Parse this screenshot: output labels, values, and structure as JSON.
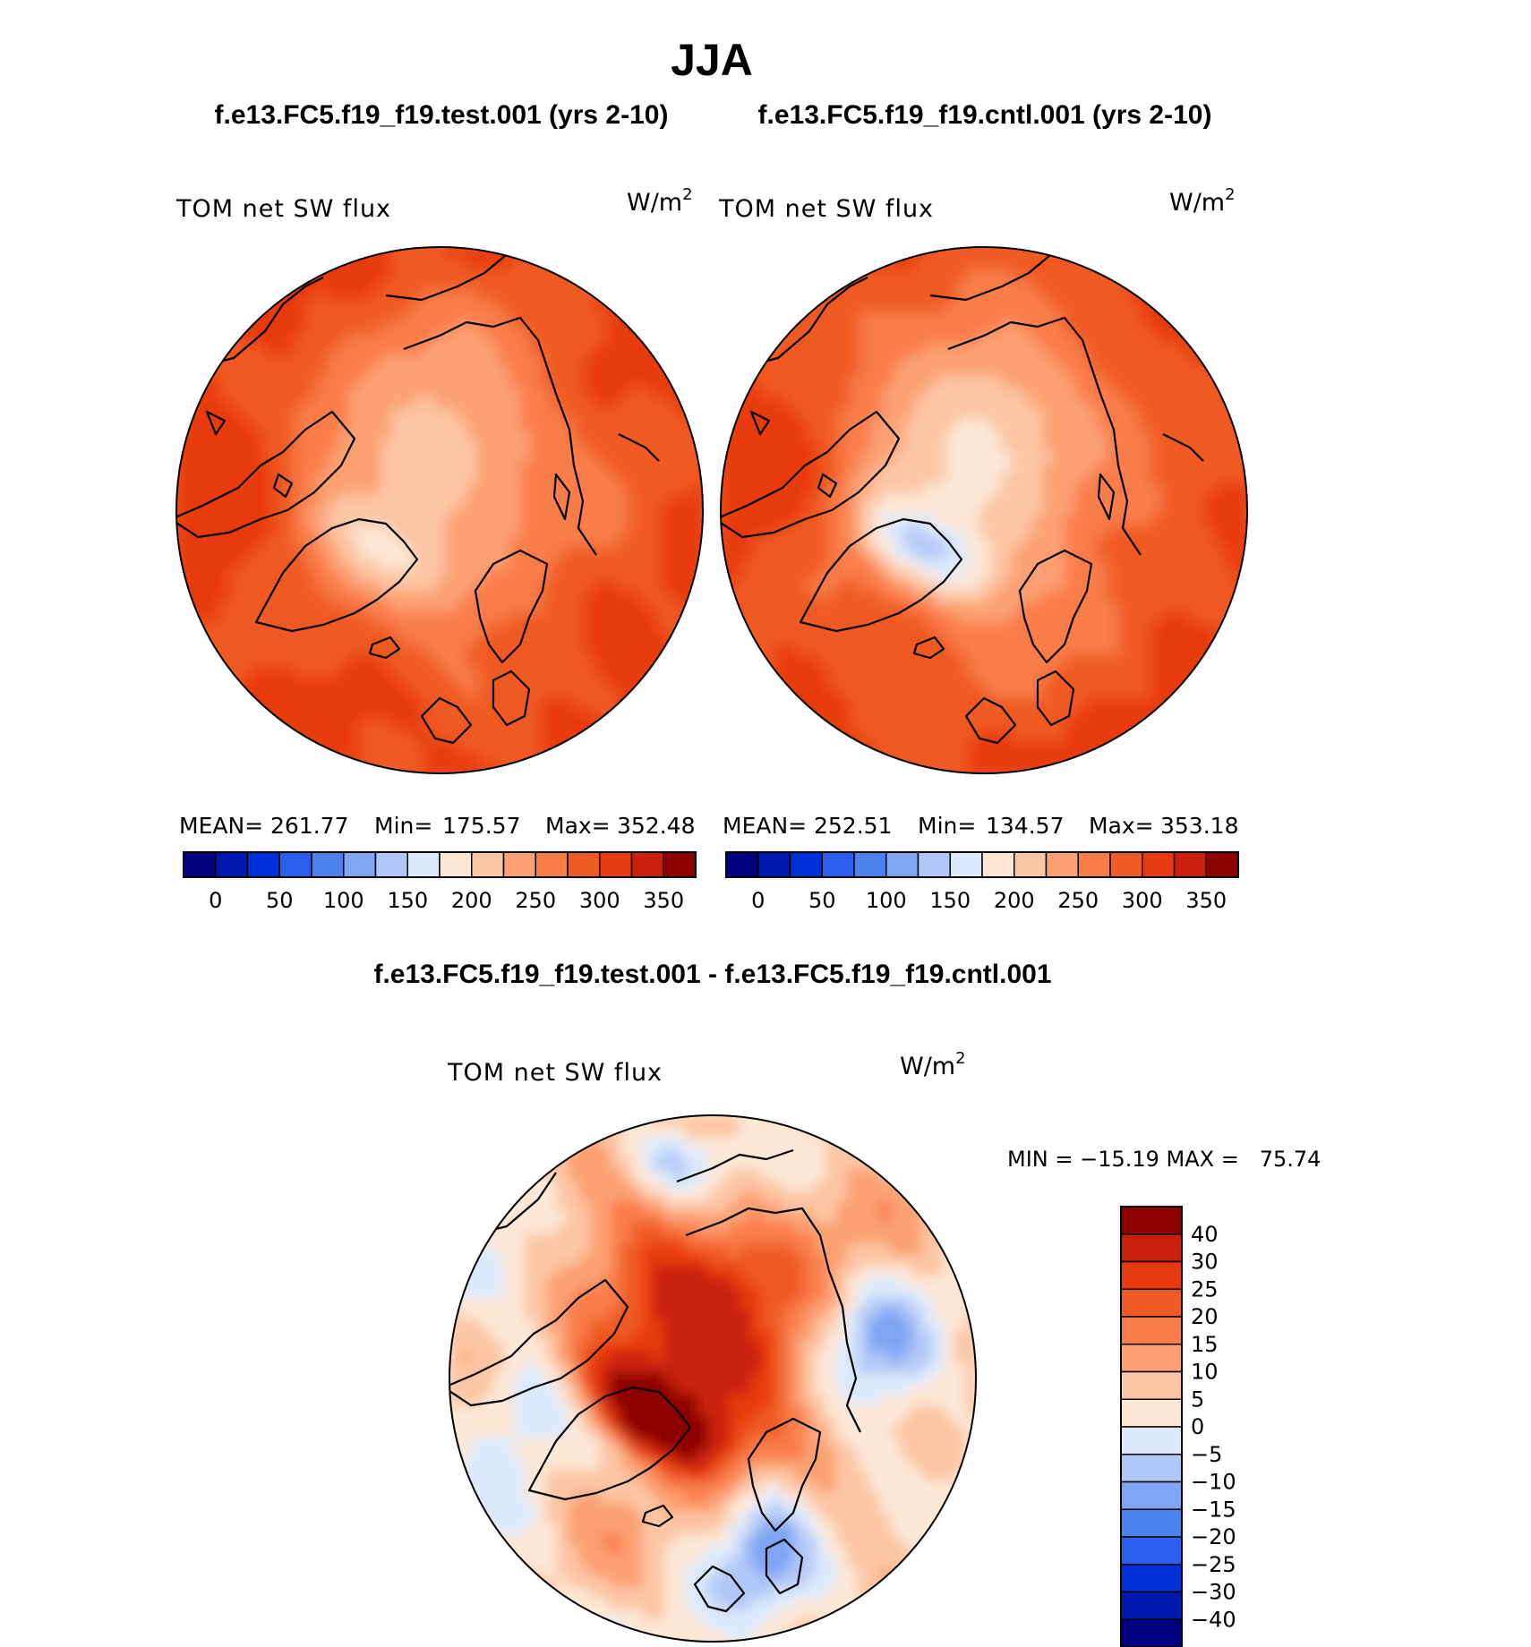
{
  "page_title": "JJA",
  "colors": {
    "seq": [
      "#000080",
      "#0018b0",
      "#0030d8",
      "#2a5ff0",
      "#4b82f0",
      "#7ea4f2",
      "#b0c8f8",
      "#dce9fc",
      "#fde8d6",
      "#fcc6a4",
      "#fca072",
      "#f97d48",
      "#f05a24",
      "#e83a10",
      "#c8200a",
      "#8c0000"
    ],
    "div": [
      "#000080",
      "#0018b0",
      "#0030d8",
      "#2a5ff0",
      "#4b82f0",
      "#7ea4f2",
      "#b0c8f8",
      "#dce9fc",
      "#fde8d6",
      "#fcc6a4",
      "#fca072",
      "#f97d48",
      "#f05a24",
      "#e83a10",
      "#c8200a",
      "#8c0000"
    ],
    "coast": "#000000"
  },
  "chart_data": [
    {
      "type": "heatmap",
      "id": "test",
      "title": "f.e13.FC5.f19_f19.test.001 (yrs 2-10)",
      "variable": "TOM net SW flux",
      "units_base": "W/m",
      "units_exp": "2",
      "stats": {
        "mean_label": "MEAN=",
        "mean": "261.77",
        "min_label": "Min=",
        "min": "175.57",
        "max_label": "Max=",
        "max": "352.48"
      },
      "colorbar": {
        "ticks": [
          "0",
          "50",
          "100",
          "150",
          "200",
          "250",
          "300",
          "350"
        ],
        "n_bins": 16
      },
      "field": {
        "base": 285,
        "pole": 215,
        "greenland": 190,
        "atlantic": 315
      }
    },
    {
      "type": "heatmap",
      "id": "cntl",
      "title": "f.e13.FC5.f19_f19.cntl.001 (yrs 2-10)",
      "variable": "TOM net SW flux",
      "units_base": "W/m",
      "units_exp": "2",
      "stats": {
        "mean_label": "MEAN=",
        "mean": "252.51",
        "min_label": "Min=",
        "min": "134.57",
        "max_label": "Max=",
        "max": "353.18"
      },
      "colorbar": {
        "ticks": [
          "0",
          "50",
          "100",
          "150",
          "200",
          "250",
          "300",
          "350"
        ],
        "n_bins": 16
      },
      "field": {
        "base": 282,
        "pole": 195,
        "greenland": 140,
        "atlantic": 312
      }
    },
    {
      "type": "heatmap",
      "id": "diff",
      "title": "f.e13.FC5.f19_f19.test.001 - f.e13.FC5.f19_f19.cntl.001",
      "variable": "TOM net SW flux",
      "units_base": "W/m",
      "units_exp": "2",
      "minmax_text": "MIN = −15.19 MAX =   75.74",
      "stats": {
        "min": -15.19,
        "max": 75.74
      },
      "colorbar": {
        "levels": [
          "40",
          "30",
          "25",
          "20",
          "15",
          "10",
          "5",
          "0",
          "−5",
          "−10",
          "−15",
          "−20",
          "−25",
          "−30",
          "−40"
        ]
      }
    }
  ]
}
